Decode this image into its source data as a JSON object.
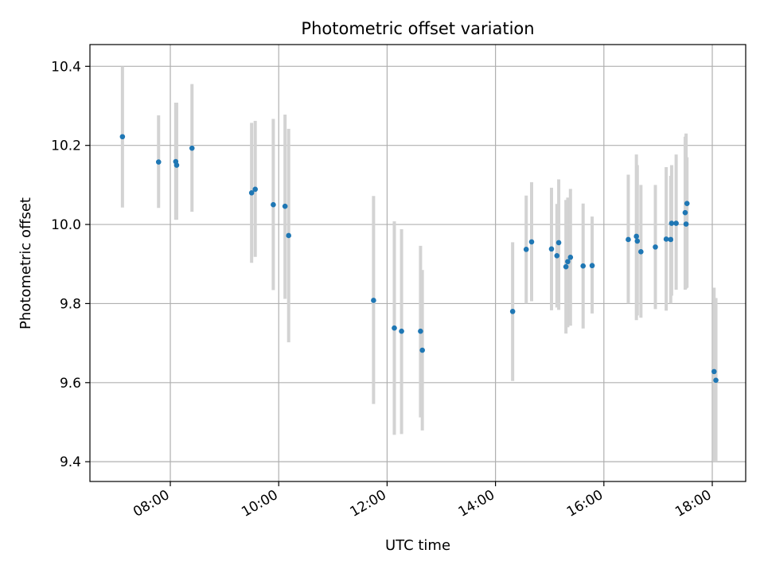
{
  "chart_data": {
    "type": "scatter",
    "title": "Photometric offset variation",
    "xlabel": "UTC time",
    "ylabel": "Photometric offset",
    "x_tick_labels": [
      "08:00",
      "10:00",
      "12:00",
      "14:00",
      "16:00",
      "18:00"
    ],
    "x_ticks": [
      "08:00",
      "10:00",
      "12:00",
      "14:00",
      "16:00",
      "18:00"
    ],
    "y_ticks": [
      9.4,
      9.6,
      9.8,
      10.0,
      10.2,
      10.4
    ],
    "y_tick_labels": [
      "9.4",
      "9.6",
      "9.8",
      "10.0",
      "10.2",
      "10.4"
    ],
    "xlim": [
      "06:31",
      "18:37"
    ],
    "ylim": [
      9.35,
      10.455
    ],
    "grid": true,
    "colors": {
      "point": "#1f77b4",
      "errorbar": "#d3d3d3",
      "grid": "#b0b0b0"
    },
    "series": [
      {
        "points": [
          {
            "x": "07:07",
            "y": 10.222,
            "lo": 10.043,
            "hi": 10.4
          },
          {
            "x": "07:47",
            "y": 10.158,
            "lo": 10.042,
            "hi": 10.276
          },
          {
            "x": "08:06",
            "y": 10.159,
            "lo": 10.012,
            "hi": 10.308
          },
          {
            "x": "08:07",
            "y": 10.15,
            "lo": 10.012,
            "hi": 10.308
          },
          {
            "x": "08:24",
            "y": 10.193,
            "lo": 10.032,
            "hi": 10.355
          },
          {
            "x": "09:30",
            "y": 10.08,
            "lo": 9.903,
            "hi": 10.257
          },
          {
            "x": "09:34",
            "y": 10.089,
            "lo": 9.918,
            "hi": 10.262
          },
          {
            "x": "09:54",
            "y": 10.05,
            "lo": 9.834,
            "hi": 10.267
          },
          {
            "x": "10:07",
            "y": 10.046,
            "lo": 9.812,
            "hi": 10.278
          },
          {
            "x": "10:11",
            "y": 9.972,
            "lo": 9.702,
            "hi": 10.242
          },
          {
            "x": "11:45",
            "y": 9.808,
            "lo": 9.546,
            "hi": 10.072
          },
          {
            "x": "12:08",
            "y": 9.738,
            "lo": 9.468,
            "hi": 10.008
          },
          {
            "x": "12:16",
            "y": 9.73,
            "lo": 9.47,
            "hi": 9.988
          },
          {
            "x": "12:37",
            "y": 9.73,
            "lo": 9.512,
            "hi": 9.946
          },
          {
            "x": "12:39",
            "y": 9.682,
            "lo": 9.479,
            "hi": 9.885
          },
          {
            "x": "14:19",
            "y": 9.78,
            "lo": 9.604,
            "hi": 9.955
          },
          {
            "x": "14:34",
            "y": 9.937,
            "lo": 9.8,
            "hi": 10.073
          },
          {
            "x": "14:40",
            "y": 9.956,
            "lo": 9.806,
            "hi": 10.107
          },
          {
            "x": "15:02",
            "y": 9.938,
            "lo": 9.783,
            "hi": 10.093
          },
          {
            "x": "15:08",
            "y": 9.921,
            "lo": 9.79,
            "hi": 10.052
          },
          {
            "x": "15:10",
            "y": 9.954,
            "lo": 9.784,
            "hi": 10.114
          },
          {
            "x": "15:18",
            "y": 9.893,
            "lo": 9.724,
            "hi": 10.062
          },
          {
            "x": "15:20",
            "y": 9.906,
            "lo": 9.74,
            "hi": 10.068
          },
          {
            "x": "15:23",
            "y": 9.917,
            "lo": 9.744,
            "hi": 10.09
          },
          {
            "x": "15:37",
            "y": 9.895,
            "lo": 9.737,
            "hi": 10.053
          },
          {
            "x": "15:47",
            "y": 9.896,
            "lo": 9.775,
            "hi": 10.02
          },
          {
            "x": "16:27",
            "y": 9.962,
            "lo": 9.8,
            "hi": 10.126
          },
          {
            "x": "16:36",
            "y": 9.97,
            "lo": 9.758,
            "hi": 10.177
          },
          {
            "x": "16:37",
            "y": 9.958,
            "lo": 9.77,
            "hi": 10.15
          },
          {
            "x": "16:41",
            "y": 9.931,
            "lo": 9.764,
            "hi": 10.1
          },
          {
            "x": "16:57",
            "y": 9.943,
            "lo": 9.786,
            "hi": 10.1
          },
          {
            "x": "17:09",
            "y": 9.963,
            "lo": 9.782,
            "hi": 10.145
          },
          {
            "x": "17:14",
            "y": 9.962,
            "lo": 9.8,
            "hi": 10.123
          },
          {
            "x": "17:15",
            "y": 10.003,
            "lo": 9.82,
            "hi": 10.15
          },
          {
            "x": "17:20",
            "y": 10.003,
            "lo": 9.835,
            "hi": 10.177
          },
          {
            "x": "17:30",
            "y": 10.03,
            "lo": 9.835,
            "hi": 10.222
          },
          {
            "x": "17:31",
            "y": 10.001,
            "lo": 9.838,
            "hi": 10.23
          },
          {
            "x": "17:32",
            "y": 10.053,
            "lo": 9.84,
            "hi": 10.17
          },
          {
            "x": "18:02",
            "y": 9.628,
            "lo": 9.4,
            "hi": 9.84
          },
          {
            "x": "18:04",
            "y": 9.606,
            "lo": 9.4,
            "hi": 9.814
          }
        ]
      }
    ]
  }
}
